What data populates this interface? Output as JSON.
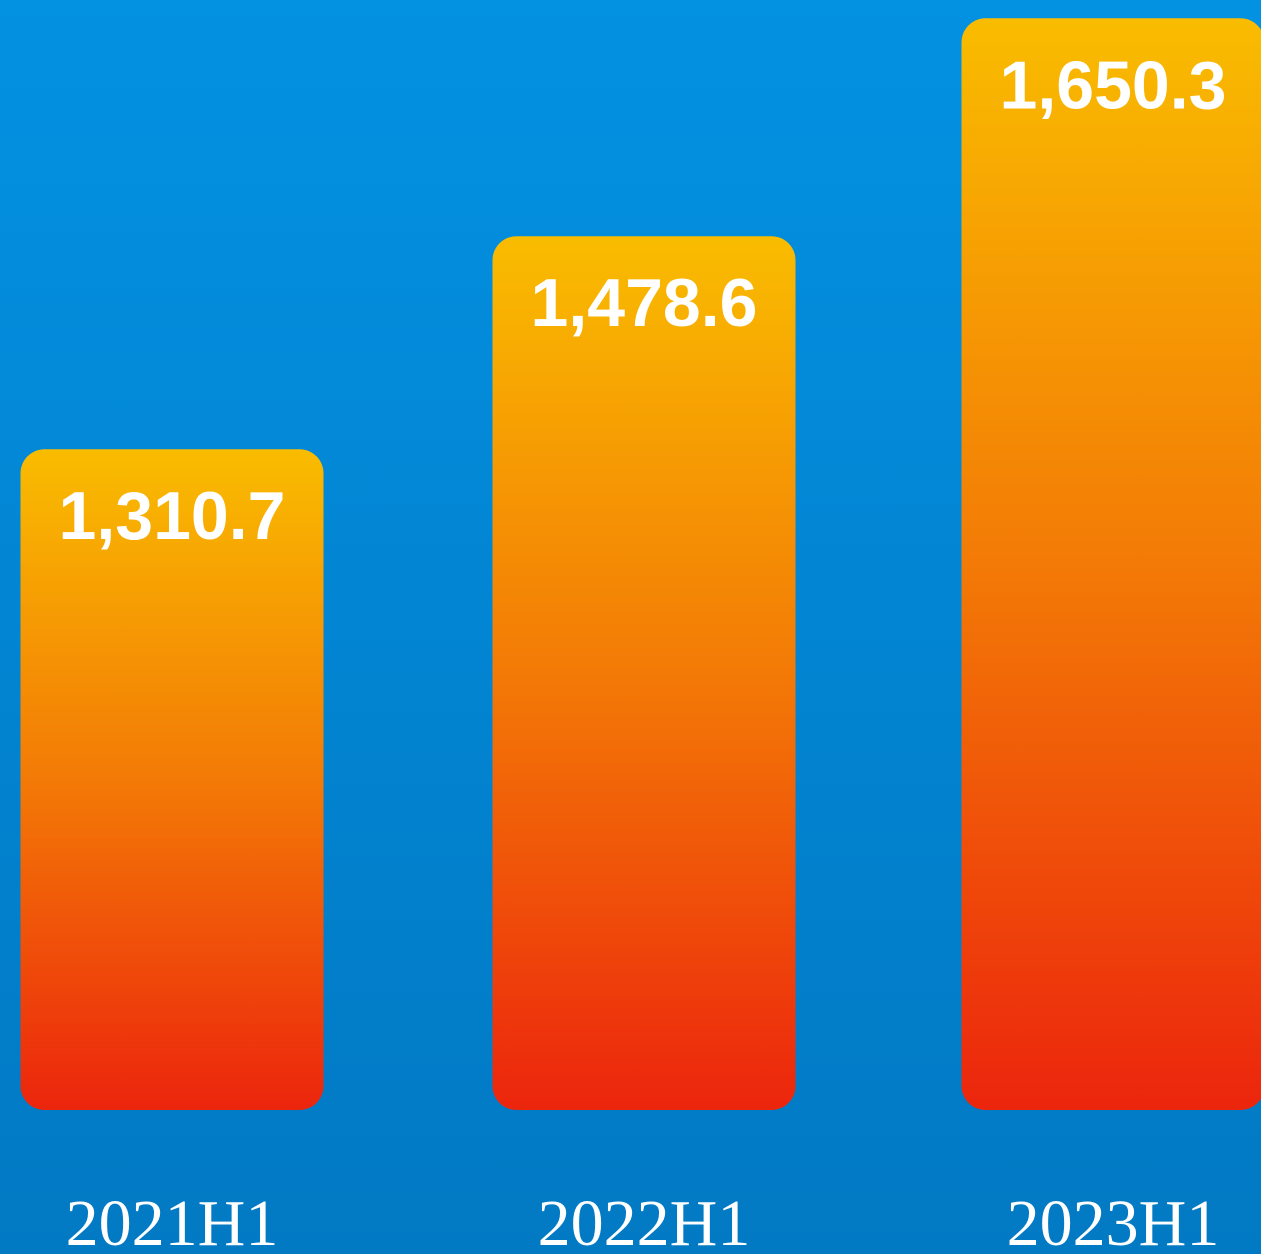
{
  "chart_data": {
    "type": "bar",
    "categories": [
      "2021H1",
      "2022H1",
      "2023H1"
    ],
    "values": [
      1310.7,
      1478.6,
      1650.3
    ],
    "value_labels": [
      "1,310.7",
      "1,478.6",
      "1,650.3"
    ],
    "ylim": [
      790,
      1660
    ]
  }
}
